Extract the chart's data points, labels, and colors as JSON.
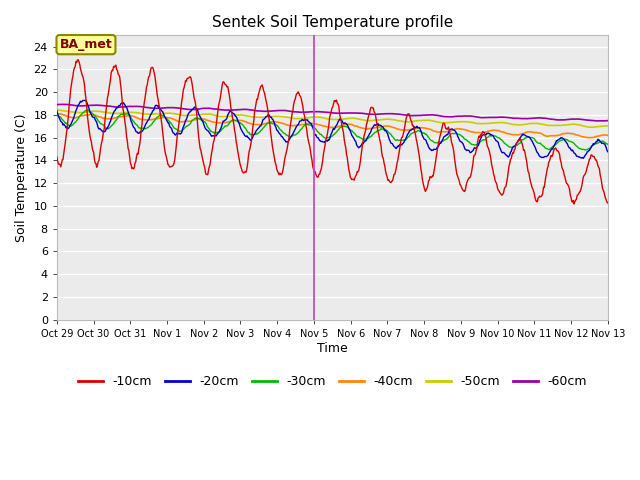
{
  "title": "Sentek Soil Temperature profile",
  "xlabel": "Time",
  "ylabel": "Soil Temperature (C)",
  "ylim": [
    0,
    25
  ],
  "yticks": [
    0,
    2,
    4,
    6,
    8,
    10,
    12,
    14,
    16,
    18,
    20,
    22,
    24
  ],
  "xtick_labels": [
    "Oct 29",
    "Oct 30",
    "Oct 31",
    "Nov 1",
    "Nov 2",
    "Nov 3",
    "Nov 4",
    "Nov 5",
    "Nov 6",
    "Nov 7",
    "Nov 8",
    "Nov 9",
    "Nov 10",
    "Nov 11",
    "Nov 12",
    "Nov 13"
  ],
  "annotation_label": "BA_met",
  "annotation_box_color": "#ffff99",
  "annotation_text_color": "#800000",
  "colors": {
    "-10cm": "#dd0000",
    "-20cm": "#0000cc",
    "-30cm": "#00bb00",
    "-40cm": "#ff8800",
    "-50cm": "#cccc00",
    "-60cm": "#9900aa"
  },
  "fig_bg_color": "#ffffff",
  "plot_bg_color": "#ebebeb",
  "grid_color": "#ffffff",
  "vline_color": "#cc44cc",
  "vline_x_day": 7,
  "n_days": 15,
  "legend_labels": [
    "-10cm",
    "-20cm",
    "-30cm",
    "-40cm",
    "-50cm",
    "-60cm"
  ]
}
